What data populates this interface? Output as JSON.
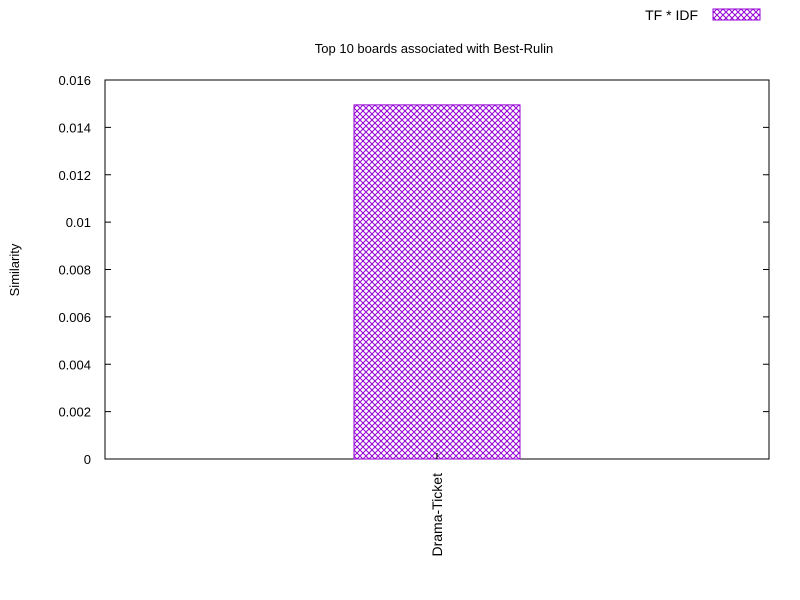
{
  "chart_data": {
    "type": "bar",
    "title": "Top 10 boards associated with Best-Rulin",
    "xlabel": "",
    "ylabel": "Similarity",
    "categories": [
      "Drama-Ticket"
    ],
    "series": [
      {
        "name": "TF * IDF",
        "values": [
          0.01495
        ]
      }
    ],
    "ylim": [
      0,
      0.016
    ],
    "yticks": [
      "0",
      "0.002",
      "0.004",
      "0.006",
      "0.008",
      "0.01",
      "0.012",
      "0.014",
      "0.016"
    ],
    "bar_color": "#9400d3",
    "bar_fill": "crosshatch",
    "legend_position": "top-right",
    "grid": false
  }
}
